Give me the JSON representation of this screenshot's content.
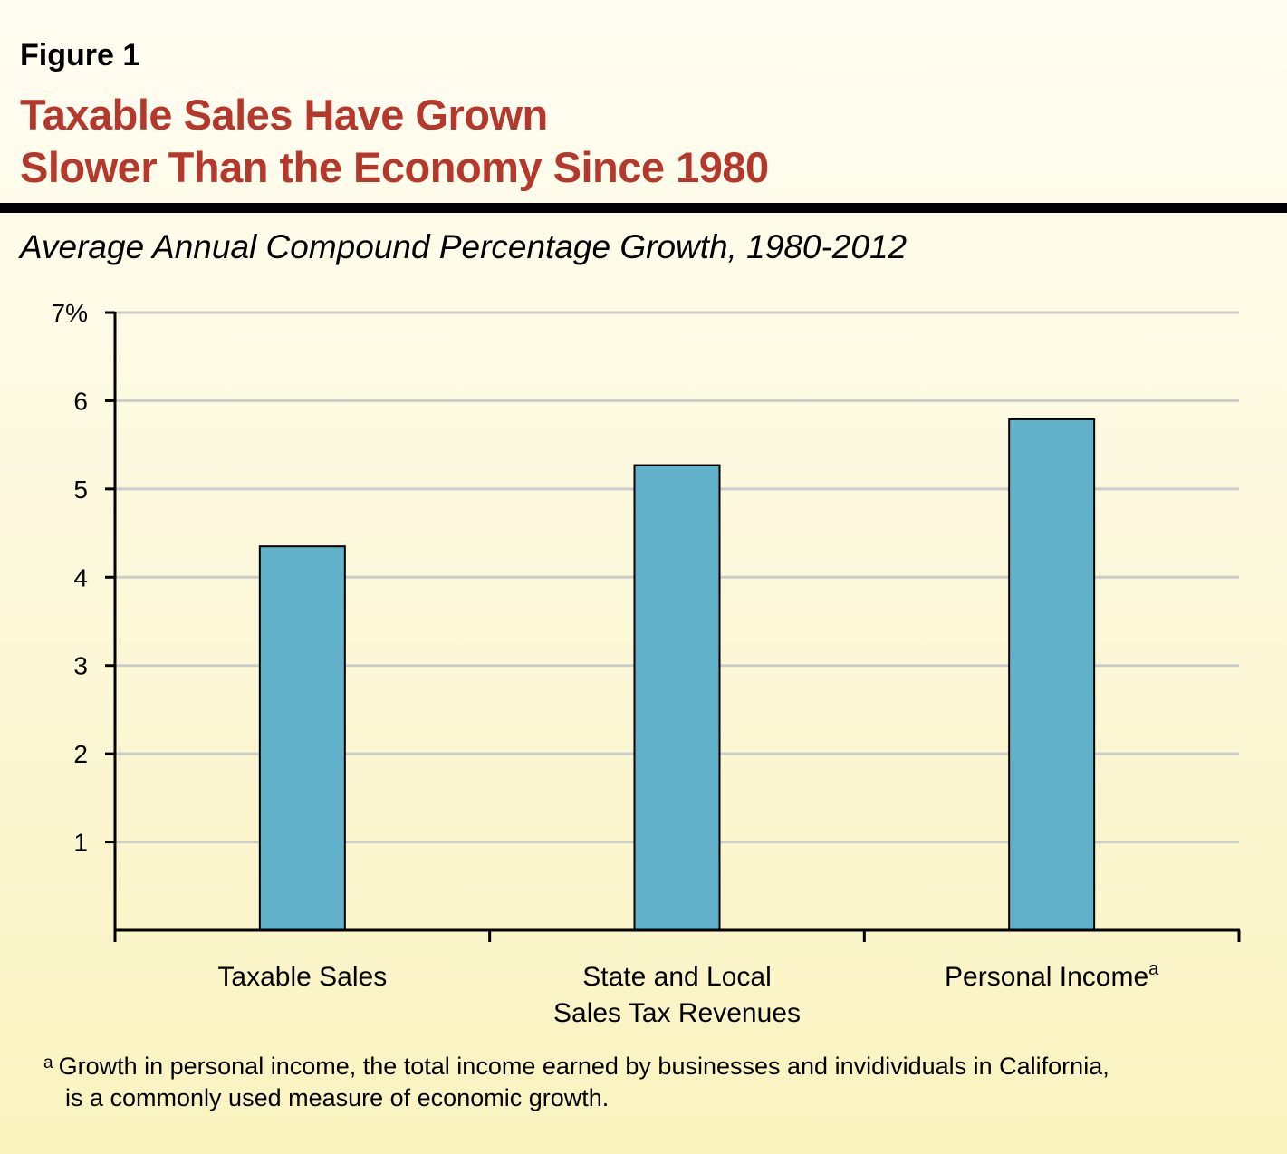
{
  "figure_label": "Figure 1",
  "title_lines": [
    "Taxable Sales Have Grown",
    "Slower Than the Economy Since 1980"
  ],
  "footnote": {
    "marker": "a",
    "line1": "Growth in personal income, the total income earned by businesses and invidividuals in California,",
    "line2": "is a commonly used measure of economic growth."
  },
  "colors": {
    "title": "#b5382c",
    "bar": "#62b1cb",
    "grid": "#cccccc"
  },
  "chart_data": {
    "type": "bar",
    "title": "Average Annual Compound Percentage Growth, 1980-2012",
    "categories": [
      {
        "lines": [
          "Taxable Sales"
        ],
        "sup": ""
      },
      {
        "lines": [
          "State and Local",
          "Sales Tax Revenues"
        ],
        "sup": ""
      },
      {
        "lines": [
          "Personal Income"
        ],
        "sup": "a"
      }
    ],
    "values": [
      4.35,
      5.27,
      5.79
    ],
    "ylim": [
      0,
      7
    ],
    "yticks": [
      "",
      "1",
      "2",
      "3",
      "4",
      "5",
      "6",
      "7%"
    ],
    "grid": true,
    "xlabel": "",
    "ylabel": ""
  }
}
